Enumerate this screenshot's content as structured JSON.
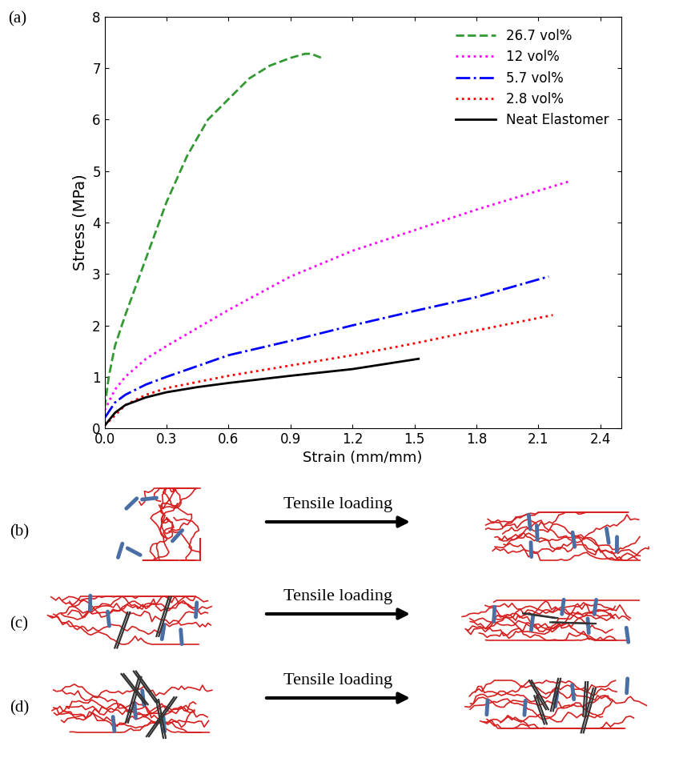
{
  "chart_data": {
    "type": "line",
    "x_label": "Strain (mm/mm)",
    "y_label": "Stress (MPa)",
    "xlim": [
      0,
      2.5
    ],
    "xticks": [
      {
        "value": 0,
        "label": "0.0"
      },
      0.3,
      0.6,
      0.9,
      1.2,
      1.5,
      1.8,
      2.1,
      2.4
    ],
    "ylim": [
      0,
      8
    ],
    "yticks": [
      0,
      1,
      2,
      3,
      4,
      5,
      6,
      7,
      8
    ],
    "legend": "upper right",
    "grid": false,
    "series": [
      {
        "name": "26.7 vol%",
        "color": "#339933",
        "line_style": "dashed",
        "x": [
          0,
          0.02,
          0.05,
          0.1,
          0.2,
          0.3,
          0.4,
          0.5,
          0.6,
          0.7,
          0.8,
          0.9,
          0.97,
          1.0,
          1.05
        ],
        "values": [
          0.4,
          1.0,
          1.6,
          2.2,
          3.3,
          4.4,
          5.3,
          6.0,
          6.4,
          6.8,
          7.05,
          7.2,
          7.28,
          7.28,
          7.2
        ]
      },
      {
        "name": "12 vol%",
        "color": "#ff00ff",
        "line_style": "dotted",
        "x": [
          0,
          0.05,
          0.1,
          0.2,
          0.3,
          0.6,
          0.9,
          1.2,
          1.5,
          1.8,
          2.25
        ],
        "values": [
          0.35,
          0.75,
          1.0,
          1.35,
          1.6,
          2.3,
          2.95,
          3.45,
          3.85,
          4.25,
          4.8
        ]
      },
      {
        "name": "5.7 vol%",
        "color": "#0000ff",
        "line_style": "dashdot",
        "x": [
          0,
          0.05,
          0.1,
          0.2,
          0.3,
          0.6,
          0.9,
          1.2,
          1.5,
          1.8,
          2.15
        ],
        "values": [
          0.2,
          0.5,
          0.65,
          0.85,
          1.0,
          1.42,
          1.7,
          2.0,
          2.28,
          2.55,
          2.95
        ]
      },
      {
        "name": "2.8 vol%",
        "color": "#ff0000",
        "line_style": "dotted",
        "x": [
          0,
          0.1,
          0.2,
          0.3,
          0.6,
          0.9,
          1.2,
          1.5,
          1.8,
          2.17
        ],
        "values": [
          0.05,
          0.45,
          0.65,
          0.78,
          1.02,
          1.22,
          1.42,
          1.65,
          1.9,
          2.2
        ]
      },
      {
        "name": "Neat Elastomer",
        "color": "#000000",
        "line_style": "solid",
        "x": [
          0,
          0.05,
          0.1,
          0.2,
          0.3,
          0.45,
          0.6,
          0.9,
          1.2,
          1.52
        ],
        "values": [
          0.05,
          0.3,
          0.45,
          0.6,
          0.7,
          0.8,
          0.88,
          1.02,
          1.15,
          1.35
        ]
      }
    ]
  },
  "figure": {
    "chart_label": "(a)",
    "diagrams": [
      {
        "label": "(b)",
        "arrow_text": "Tensile loading"
      },
      {
        "label": "(c)",
        "arrow_text": "Tensile loading"
      },
      {
        "label": "(d)",
        "arrow_text": "Tensile loading"
      }
    ]
  }
}
